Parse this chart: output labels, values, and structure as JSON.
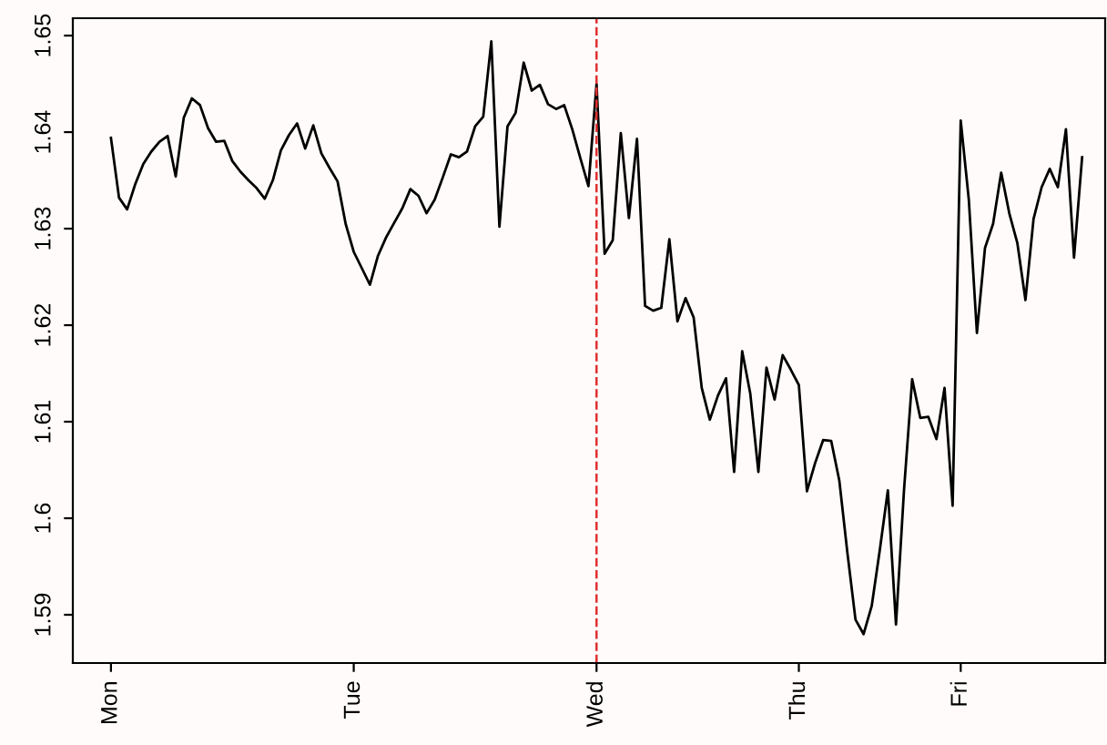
{
  "chart_data": {
    "type": "line",
    "line_style": "solid",
    "marker": "none",
    "grid": false,
    "legend": false,
    "ylim": [
      1.585,
      1.6518
    ],
    "yticks": [
      1.59,
      1.6,
      1.61,
      1.62,
      1.63,
      1.64,
      1.65
    ],
    "categories": [
      "Mon",
      null,
      null,
      null,
      null,
      null,
      null,
      null,
      null,
      null,
      null,
      null,
      null,
      null,
      null,
      null,
      null,
      null,
      null,
      null,
      null,
      null,
      null,
      null,
      null,
      null,
      null,
      null,
      null,
      null,
      "Tue",
      null,
      null,
      null,
      null,
      null,
      null,
      null,
      null,
      null,
      null,
      null,
      null,
      null,
      null,
      null,
      null,
      null,
      null,
      null,
      null,
      null,
      null,
      null,
      null,
      null,
      null,
      null,
      null,
      null,
      "Wed",
      null,
      null,
      null,
      null,
      null,
      null,
      null,
      null,
      null,
      null,
      null,
      null,
      null,
      null,
      null,
      null,
      null,
      null,
      null,
      null,
      null,
      null,
      null,
      null,
      "Thu",
      null,
      null,
      null,
      null,
      null,
      null,
      null,
      null,
      null,
      null,
      null,
      null,
      null,
      null,
      null,
      null,
      null,
      null,
      null,
      "Fri",
      null,
      null,
      null,
      null,
      null,
      null,
      null,
      null,
      null,
      null,
      null,
      null,
      null,
      null,
      null
    ],
    "ref_lines": [
      {
        "axis": "x",
        "value": "Wed",
        "color": "#e03030",
        "line_style": "dashed"
      }
    ],
    "series": [
      {
        "color": "#000000",
        "values": [
          1.6394,
          1.6332,
          1.632,
          1.6346,
          1.6367,
          1.638,
          1.639,
          1.6396,
          1.6354,
          1.6415,
          1.6435,
          1.6428,
          1.6404,
          1.639,
          1.6391,
          1.637,
          1.6359,
          1.635,
          1.6342,
          1.6331,
          1.635,
          1.6381,
          1.6397,
          1.6409,
          1.6383,
          1.6407,
          1.6378,
          1.6363,
          1.6349,
          1.6305,
          1.6276,
          1.6259,
          1.6242,
          1.6272,
          1.6291,
          1.6306,
          1.6321,
          1.6341,
          1.6334,
          1.6316,
          1.633,
          1.6353,
          1.6377,
          1.6374,
          1.638,
          1.6406,
          1.6416,
          1.6494,
          1.6302,
          1.6406,
          1.642,
          1.6472,
          1.6443,
          1.6449,
          1.6429,
          1.6424,
          1.6428,
          1.6403,
          1.6373,
          1.6344,
          1.645,
          1.6274,
          1.6288,
          1.6399,
          1.6311,
          1.6393,
          1.622,
          1.6215,
          1.6218,
          1.6289,
          1.6204,
          1.6228,
          1.6208,
          1.6135,
          1.6102,
          1.6127,
          1.6145,
          1.6048,
          1.6173,
          1.6129,
          1.6048,
          1.6156,
          1.6123,
          1.6169,
          1.6154,
          1.6138,
          1.6028,
          1.6057,
          1.6081,
          1.608,
          1.6039,
          1.5964,
          1.5895,
          1.588,
          1.5909,
          1.5967,
          1.6029,
          1.589,
          1.603,
          1.6144,
          1.6104,
          1.6105,
          1.6082,
          1.6135,
          1.6013,
          1.6412,
          1.633,
          1.6192,
          1.628,
          1.6305,
          1.6358,
          1.6316,
          1.6285,
          1.6226,
          1.631,
          1.6343,
          1.6362,
          1.6343,
          1.6403,
          1.627,
          1.6374
        ]
      }
    ]
  }
}
